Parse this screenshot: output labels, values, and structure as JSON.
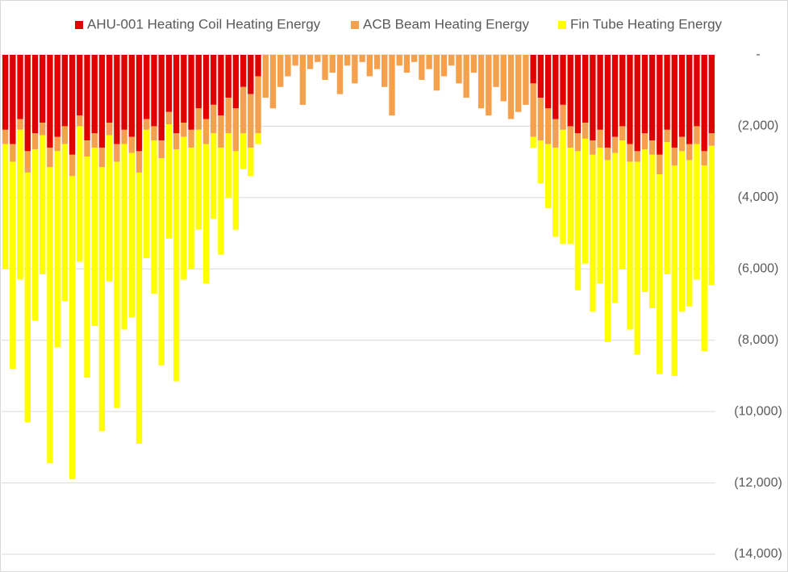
{
  "chart_data": {
    "type": "bar",
    "stacked": true,
    "grid": true,
    "legend": "top",
    "categories": [
      null,
      null,
      null,
      null,
      null,
      null,
      null,
      null,
      null,
      null,
      null,
      null,
      null,
      null,
      null,
      null,
      null,
      null,
      null,
      null,
      null,
      null,
      null,
      null,
      null,
      null,
      null,
      null,
      null,
      null,
      null,
      null,
      null,
      null,
      null,
      null,
      null,
      null,
      null,
      null,
      null,
      null,
      null,
      null,
      null,
      null,
      null,
      null,
      null,
      null,
      null,
      null,
      null,
      null,
      null,
      null,
      null,
      null,
      null,
      null,
      null,
      null,
      null,
      null,
      null,
      null,
      null,
      null,
      null,
      null,
      null,
      null,
      null,
      null,
      null,
      null,
      null,
      null,
      null,
      null,
      null,
      null,
      null,
      null,
      null,
      null,
      null,
      null,
      null,
      null,
      null,
      null,
      null,
      null,
      null,
      null
    ],
    "ylim": [
      -14000,
      0
    ],
    "yticks": [
      {
        "value": 0,
        "label": "-"
      },
      {
        "value": -2000,
        "label": "(2,000)"
      },
      {
        "value": -4000,
        "label": "(4,000)"
      },
      {
        "value": -6000,
        "label": "(6,000)"
      },
      {
        "value": -8000,
        "label": "(8,000)"
      },
      {
        "value": -10000,
        "label": "(10,000)"
      },
      {
        "value": -12000,
        "label": "(12,000)"
      },
      {
        "value": -14000,
        "label": "(14,000)"
      }
    ],
    "series": [
      {
        "name": "AHU-001 Heating Coil Heating Energy",
        "color": "#e00000",
        "values": [
          -2100,
          -2500,
          -1800,
          -2700,
          -2200,
          -1900,
          -2600,
          -2300,
          -2000,
          -2800,
          -1700,
          -2400,
          -2200,
          -2600,
          -1900,
          -2500,
          -2100,
          -2300,
          -2700,
          -1800,
          -2000,
          -2400,
          -1600,
          -2200,
          -1900,
          -2100,
          -1500,
          -1800,
          -1400,
          -1700,
          -1200,
          -1500,
          -900,
          -1100,
          -600,
          0,
          0,
          0,
          0,
          0,
          0,
          0,
          0,
          0,
          0,
          0,
          0,
          0,
          0,
          0,
          0,
          0,
          0,
          0,
          0,
          0,
          0,
          0,
          0,
          0,
          0,
          0,
          0,
          0,
          0,
          0,
          0,
          0,
          0,
          0,
          0,
          -800,
          -1200,
          -1500,
          -1800,
          -1400,
          -2000,
          -2200,
          -1900,
          -2400,
          -2100,
          -2600,
          -2300,
          -2000,
          -2500,
          -2700,
          -2200,
          -2400,
          -2800,
          -2100,
          -2600,
          -2300,
          -2500,
          -2000,
          -2700,
          -2200
        ]
      },
      {
        "name": "ACB Beam Heating Energy",
        "color": "#f4a04c",
        "values": [
          -400,
          -500,
          -300,
          -600,
          -450,
          -350,
          -550,
          -400,
          -500,
          -600,
          -300,
          -450,
          -400,
          -550,
          -350,
          -500,
          -400,
          -450,
          -600,
          -300,
          -400,
          -500,
          -350,
          -450,
          -400,
          -500,
          -600,
          -700,
          -800,
          -900,
          -1000,
          -1200,
          -1300,
          -1500,
          -1600,
          -1200,
          -1500,
          -900,
          -600,
          -300,
          -1400,
          -400,
          -200,
          -700,
          -500,
          -1100,
          -300,
          -800,
          -200,
          -600,
          -400,
          -900,
          -1700,
          -300,
          -500,
          -200,
          -700,
          -400,
          -1000,
          -600,
          -300,
          -800,
          -1200,
          -500,
          -1500,
          -1700,
          -900,
          -1300,
          -1800,
          -1600,
          -1400,
          -1500,
          -1200,
          -1000,
          -800,
          -700,
          -600,
          -500,
          -450,
          -400,
          -500,
          -350,
          -450,
          -400,
          -500,
          -300,
          -450,
          -400,
          -550,
          -350,
          -500,
          -400,
          -450,
          -500,
          -400,
          -350
        ]
      },
      {
        "name": "Fin Tube Heating Energy",
        "color": "#ffff00",
        "values": [
          -3500,
          -5800,
          -4200,
          -7000,
          -4800,
          -3900,
          -8300,
          -5500,
          -4400,
          -8500,
          -3800,
          -6200,
          -5000,
          -7400,
          -4100,
          -6900,
          -5200,
          -4600,
          -7600,
          -3600,
          -4300,
          -5800,
          -3200,
          -6500,
          -4000,
          -3400,
          -2800,
          -3900,
          -2400,
          -3000,
          -1800,
          -2200,
          -1000,
          -800,
          -300,
          0,
          0,
          0,
          0,
          0,
          0,
          0,
          0,
          0,
          0,
          0,
          0,
          0,
          0,
          0,
          0,
          0,
          0,
          0,
          0,
          0,
          0,
          0,
          0,
          0,
          0,
          0,
          0,
          0,
          0,
          0,
          0,
          0,
          0,
          0,
          0,
          -300,
          -1200,
          -1800,
          -2500,
          -3200,
          -2700,
          -3900,
          -3500,
          -4400,
          -3800,
          -5100,
          -4200,
          -3600,
          -4700,
          -5400,
          -4000,
          -4300,
          -5600,
          -3700,
          -5900,
          -4500,
          -4100,
          -3800,
          -5200,
          -3900
        ]
      }
    ]
  }
}
